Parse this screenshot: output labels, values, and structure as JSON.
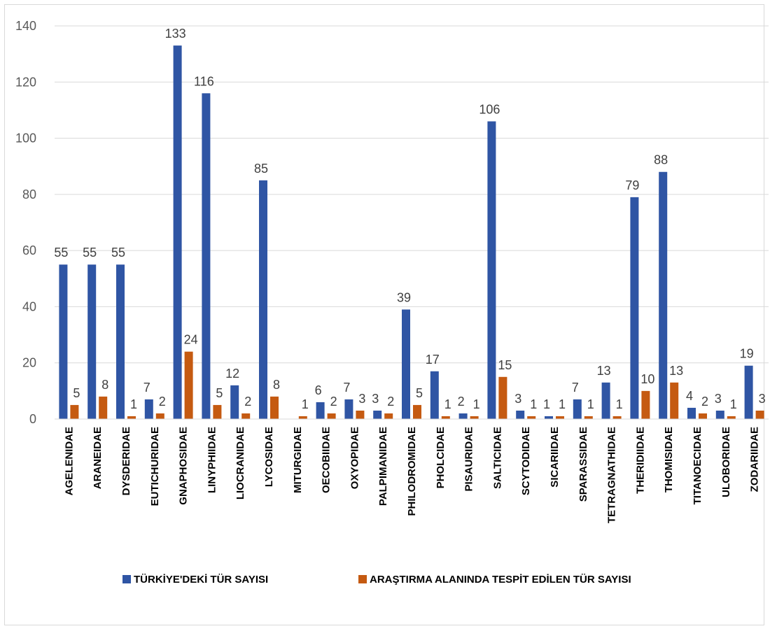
{
  "chart_data": {
    "type": "bar",
    "categories": [
      "AGELENIDAE",
      "ARANEIDAE",
      "DYSDERIDAE",
      "EUTICHURIDAE",
      "GNAPHOSIDAE",
      "LINYPHIIDAE",
      "LIOCRANIDAE",
      "LYCOSIDAE",
      "MITURGIDAE",
      "OECOBIIDAE",
      "OXYOPIDAE",
      "PALPIMANIDAE",
      "PHILODROMIDAE",
      "PHOLCIDAE",
      "PISAURIDAE",
      "SALTICIDAE",
      "SCYTODIDAE",
      "SICARIIDAE",
      "SPARASSIDAE",
      "TETRAGNATHIDAE",
      "THERIDIIDAE",
      "THOMISIDAE",
      "TITANOECIDAE",
      "ULOBORIDAE",
      "ZODARIIDAE"
    ],
    "series": [
      {
        "name": "TÜRKİYE'DEKİ TÜR SAYISI",
        "color": "#2f55a4",
        "values": [
          55,
          55,
          55,
          7,
          133,
          116,
          12,
          85,
          null,
          6,
          7,
          3,
          39,
          17,
          2,
          106,
          3,
          1,
          7,
          13,
          79,
          88,
          4,
          3,
          19
        ]
      },
      {
        "name": "ARAŞTIRMA ALANINDA TESPİT EDİLEN TÜR SAYISI",
        "color": "#c55a11",
        "values": [
          5,
          8,
          1,
          2,
          24,
          5,
          2,
          8,
          1,
          2,
          3,
          2,
          5,
          1,
          1,
          15,
          1,
          1,
          1,
          1,
          10,
          13,
          2,
          1,
          3
        ]
      }
    ],
    "yticks": [
      0,
      20,
      40,
      60,
      80,
      100,
      120,
      140
    ],
    "ylim": [
      0,
      140
    ],
    "grid": true,
    "legend": "bottom",
    "title": "",
    "xlabel": "",
    "ylabel": ""
  }
}
